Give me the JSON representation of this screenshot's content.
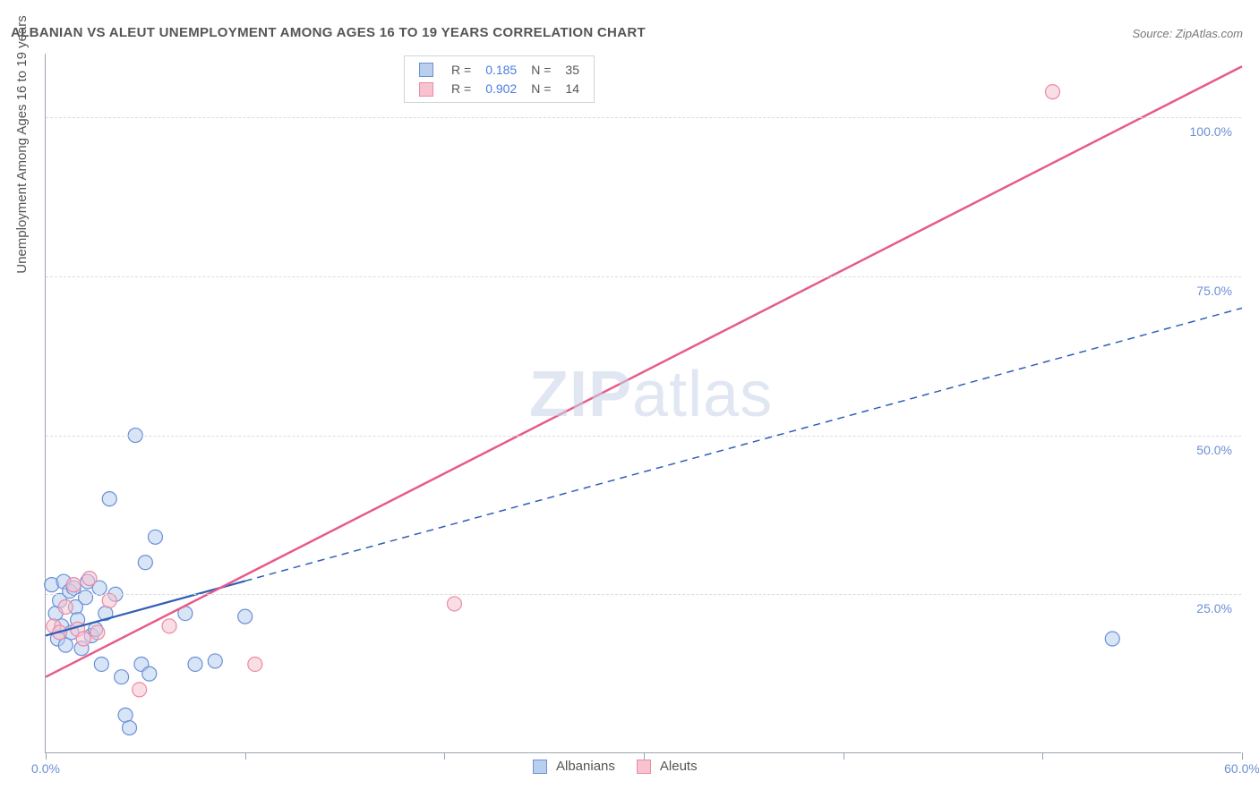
{
  "title": "ALBANIAN VS ALEUT UNEMPLOYMENT AMONG AGES 16 TO 19 YEARS CORRELATION CHART",
  "source": "Source: ZipAtlas.com",
  "yaxis_label": "Unemployment Among Ages 16 to 19 years",
  "watermark": {
    "bold": "ZIP",
    "rest": "atlas"
  },
  "chart": {
    "type": "scatter",
    "xlim": [
      0,
      60
    ],
    "ylim": [
      0,
      110
    ],
    "xticks": [
      0,
      10,
      20,
      30,
      40,
      50,
      60
    ],
    "xtick_labels": [
      "0.0%",
      "",
      "",
      "",
      "",
      "",
      "60.0%"
    ],
    "yticks": [
      25,
      50,
      75,
      100
    ],
    "ytick_labels": [
      "25.0%",
      "50.0%",
      "75.0%",
      "100.0%"
    ],
    "grid_color": "#d8dce0",
    "axis_color": "#9aa4b0",
    "background_color": "#ffffff",
    "series": [
      {
        "name": "Albanians",
        "marker_fill": "#b8cff0",
        "marker_stroke": "#6a8fd6",
        "marker_radius": 8,
        "marker_opacity": 0.55,
        "line_color": "#2f5fb5",
        "line_width": 2.2,
        "line_dash_after_x": 10,
        "R": 0.185,
        "N": 35,
        "trend": {
          "x1": 0,
          "y1": 18.5,
          "x2": 60,
          "y2": 70
        },
        "points": [
          [
            0.3,
            26.5
          ],
          [
            0.5,
            22
          ],
          [
            0.6,
            18
          ],
          [
            0.7,
            24
          ],
          [
            0.8,
            20
          ],
          [
            0.9,
            27
          ],
          [
            1.0,
            17
          ],
          [
            1.2,
            25.5
          ],
          [
            1.3,
            19
          ],
          [
            1.4,
            26
          ],
          [
            1.5,
            23
          ],
          [
            1.6,
            21
          ],
          [
            1.8,
            16.5
          ],
          [
            2.0,
            24.5
          ],
          [
            2.1,
            27
          ],
          [
            2.3,
            18.5
          ],
          [
            2.5,
            19.5
          ],
          [
            2.7,
            26
          ],
          [
            2.8,
            14
          ],
          [
            3.0,
            22
          ],
          [
            3.2,
            40
          ],
          [
            3.5,
            25
          ],
          [
            3.8,
            12
          ],
          [
            4.0,
            6
          ],
          [
            4.2,
            4
          ],
          [
            4.5,
            50
          ],
          [
            4.8,
            14
          ],
          [
            5.0,
            30
          ],
          [
            5.2,
            12.5
          ],
          [
            5.5,
            34
          ],
          [
            7.0,
            22
          ],
          [
            7.5,
            14
          ],
          [
            8.5,
            14.5
          ],
          [
            10.0,
            21.5
          ],
          [
            53.5,
            18
          ]
        ]
      },
      {
        "name": "Aleuts",
        "marker_fill": "#f6c3cf",
        "marker_stroke": "#e98aa3",
        "marker_radius": 8,
        "marker_opacity": 0.55,
        "line_color": "#e75a88",
        "line_width": 2.5,
        "line_dash_after_x": null,
        "R": 0.902,
        "N": 14,
        "trend": {
          "x1": 0,
          "y1": 12,
          "x2": 60,
          "y2": 108
        },
        "points": [
          [
            0.4,
            20
          ],
          [
            0.7,
            19
          ],
          [
            1.0,
            23
          ],
          [
            1.4,
            26.5
          ],
          [
            1.6,
            19.5
          ],
          [
            1.9,
            18
          ],
          [
            2.2,
            27.5
          ],
          [
            2.6,
            19
          ],
          [
            3.2,
            24
          ],
          [
            4.7,
            10
          ],
          [
            6.2,
            20
          ],
          [
            10.5,
            14
          ],
          [
            20.5,
            23.5
          ],
          [
            50.5,
            104
          ]
        ]
      }
    ]
  },
  "legend_bottom": [
    {
      "label": "Albanians",
      "fill": "#b8cff0",
      "stroke": "#6a8fd6"
    },
    {
      "label": "Aleuts",
      "fill": "#f6c3cf",
      "stroke": "#e98aa3"
    }
  ]
}
